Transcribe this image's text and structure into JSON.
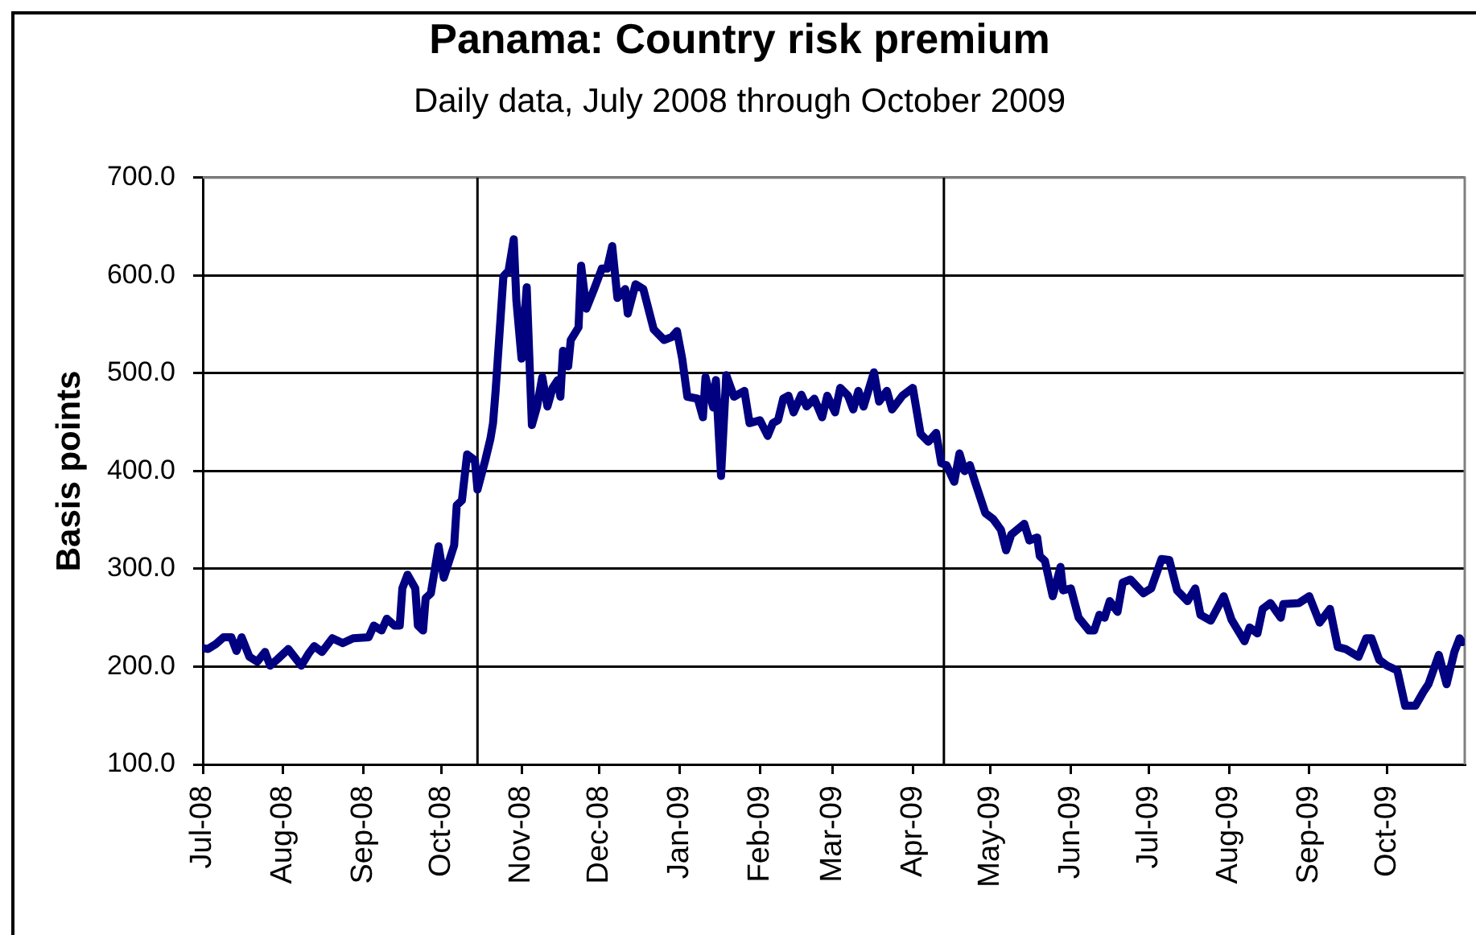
{
  "chart_data": {
    "type": "line",
    "title": "Panama: Country risk premium",
    "subtitle": "Daily data, July 2008 through October 2009",
    "ylabel": "Basis points",
    "x": [
      "2008-07-01",
      "2008-07-03",
      "2008-07-06",
      "2008-07-09",
      "2008-07-12",
      "2008-07-14",
      "2008-07-16",
      "2008-07-19",
      "2008-07-22",
      "2008-07-25",
      "2008-07-27",
      "2008-07-30",
      "2008-08-03",
      "2008-08-08",
      "2008-08-11",
      "2008-08-13",
      "2008-08-16",
      "2008-08-20",
      "2008-08-24",
      "2008-08-28",
      "2008-09-03",
      "2008-09-05",
      "2008-09-08",
      "2008-09-10",
      "2008-09-13",
      "2008-09-15",
      "2008-09-16",
      "2008-09-18",
      "2008-09-21",
      "2008-09-22",
      "2008-09-24",
      "2008-09-25",
      "2008-09-27",
      "2008-09-30",
      "2008-10-02",
      "2008-10-06",
      "2008-10-07",
      "2008-10-09",
      "2008-10-11",
      "2008-10-14",
      "2008-10-15",
      "2008-10-18",
      "2008-10-20",
      "2008-10-21",
      "2008-10-22",
      "2008-10-25",
      "2008-10-27",
      "2008-10-29",
      "2008-10-30",
      "2008-11-01",
      "2008-11-03",
      "2008-11-05",
      "2008-11-07",
      "2008-11-09",
      "2008-11-11",
      "2008-11-13",
      "2008-11-15",
      "2008-11-16",
      "2008-11-17",
      "2008-11-19",
      "2008-11-20",
      "2008-11-23",
      "2008-11-24",
      "2008-11-26",
      "2008-11-29",
      "2008-12-02",
      "2008-12-04",
      "2008-12-06",
      "2008-12-08",
      "2008-12-11",
      "2008-12-12",
      "2008-12-15",
      "2008-12-18",
      "2008-12-22",
      "2008-12-26",
      "2008-12-29",
      "2008-12-31",
      "2009-01-02",
      "2009-01-04",
      "2009-01-08",
      "2009-01-10",
      "2009-01-11",
      "2009-01-14",
      "2009-01-15",
      "2009-01-17",
      "2009-01-19",
      "2009-01-22",
      "2009-01-26",
      "2009-01-28",
      "2009-02-01",
      "2009-02-04",
      "2009-02-06",
      "2009-02-08",
      "2009-02-10",
      "2009-02-12",
      "2009-02-14",
      "2009-02-17",
      "2009-02-19",
      "2009-02-22",
      "2009-02-25",
      "2009-02-27",
      "2009-03-02",
      "2009-03-04",
      "2009-03-07",
      "2009-03-09",
      "2009-03-11",
      "2009-03-13",
      "2009-03-17",
      "2009-03-19",
      "2009-03-22",
      "2009-03-24",
      "2009-03-28",
      "2009-04-01",
      "2009-04-04",
      "2009-04-07",
      "2009-04-10",
      "2009-04-12",
      "2009-04-14",
      "2009-04-17",
      "2009-04-19",
      "2009-04-21",
      "2009-04-23",
      "2009-04-25",
      "2009-04-29",
      "2009-05-02",
      "2009-05-05",
      "2009-05-07",
      "2009-05-09",
      "2009-05-14",
      "2009-05-16",
      "2009-05-19",
      "2009-05-20",
      "2009-05-22",
      "2009-05-25",
      "2009-05-28",
      "2009-05-29",
      "2009-06-01",
      "2009-06-04",
      "2009-06-08",
      "2009-06-10",
      "2009-06-12",
      "2009-06-14",
      "2009-06-16",
      "2009-06-19",
      "2009-06-21",
      "2009-06-24",
      "2009-06-29",
      "2009-07-02",
      "2009-07-06",
      "2009-07-09",
      "2009-07-12",
      "2009-07-16",
      "2009-07-19",
      "2009-07-21",
      "2009-07-25",
      "2009-07-30",
      "2009-08-02",
      "2009-08-07",
      "2009-08-09",
      "2009-08-12",
      "2009-08-14",
      "2009-08-17",
      "2009-08-21",
      "2009-08-22",
      "2009-08-28",
      "2009-09-01",
      "2009-09-05",
      "2009-09-09",
      "2009-09-12",
      "2009-09-15",
      "2009-09-20",
      "2009-09-23",
      "2009-09-25",
      "2009-09-28",
      "2009-10-01",
      "2009-10-05",
      "2009-10-08",
      "2009-10-12",
      "2009-10-15",
      "2009-10-17",
      "2009-10-21",
      "2009-10-24",
      "2009-10-27",
      "2009-10-29",
      "2009-10-30"
    ],
    "values": [
      219,
      218,
      223,
      230,
      230,
      216,
      230,
      210,
      205,
      215,
      201,
      208,
      218,
      201,
      214,
      221,
      215,
      229,
      224,
      229,
      230,
      242,
      237,
      249,
      242,
      242,
      280,
      294,
      280,
      242,
      237,
      270,
      275,
      323,
      291,
      324,
      365,
      370,
      417,
      411,
      381,
      411,
      433,
      449,
      482,
      599,
      605,
      637,
      575,
      515,
      588,
      447,
      466,
      496,
      466,
      485,
      493,
      476,
      523,
      507,
      534,
      547,
      610,
      566,
      586,
      607,
      607,
      630,
      577,
      586,
      561,
      591,
      586,
      545,
      534,
      537,
      543,
      515,
      476,
      474,
      455,
      496,
      465,
      493,
      395,
      498,
      476,
      482,
      449,
      452,
      436,
      449,
      452,
      474,
      477,
      460,
      478,
      466,
      474,
      455,
      477,
      460,
      485,
      477,
      463,
      482,
      466,
      501,
      471,
      482,
      463,
      477,
      485,
      438,
      430,
      439,
      408,
      406,
      389,
      418,
      400,
      406,
      389,
      357,
      351,
      340,
      319,
      335,
      346,
      329,
      332,
      313,
      308,
      272,
      302,
      278,
      280,
      250,
      237,
      237,
      253,
      250,
      267,
      256,
      286,
      289,
      275,
      280,
      310,
      309,
      278,
      267,
      280,
      253,
      247,
      272,
      248,
      226,
      240,
      234,
      259,
      265,
      250,
      264,
      265,
      272,
      245,
      259,
      220,
      218,
      210,
      229,
      229,
      207,
      201,
      196,
      160,
      160,
      174,
      182,
      212,
      182,
      215,
      229,
      225
    ],
    "color": "#000080",
    "xlim": [
      "2008-07-01",
      "2009-10-31"
    ],
    "xticks": [
      {
        "value": "2008-07-01",
        "label": "Jul-08"
      },
      {
        "value": "2008-08-01",
        "label": "Aug-08"
      },
      {
        "value": "2008-09-01",
        "label": "Sep-08"
      },
      {
        "value": "2008-10-01",
        "label": "Oct-08"
      },
      {
        "value": "2008-11-01",
        "label": "Nov-08"
      },
      {
        "value": "2008-12-01",
        "label": "Dec-08"
      },
      {
        "value": "2009-01-01",
        "label": "Jan-09"
      },
      {
        "value": "2009-02-01",
        "label": "Feb-09"
      },
      {
        "value": "2009-03-01",
        "label": "Mar-09"
      },
      {
        "value": "2009-04-01",
        "label": "Apr-09"
      },
      {
        "value": "2009-05-01",
        "label": "May-09"
      },
      {
        "value": "2009-06-01",
        "label": "Jun-09"
      },
      {
        "value": "2009-07-01",
        "label": "Jul-09"
      },
      {
        "value": "2009-08-01",
        "label": "Aug-09"
      },
      {
        "value": "2009-09-01",
        "label": "Sep-09"
      },
      {
        "value": "2009-10-01",
        "label": "Oct-09"
      }
    ],
    "ylim": [
      100,
      700
    ],
    "yticks": [
      {
        "value": 100,
        "label": "100.0"
      },
      {
        "value": 200,
        "label": "200.0"
      },
      {
        "value": 300,
        "label": "300.0"
      },
      {
        "value": 400,
        "label": "400.0"
      },
      {
        "value": 500,
        "label": "500.0"
      },
      {
        "value": 600,
        "label": "600.0"
      },
      {
        "value": 700,
        "label": "700.0"
      }
    ],
    "grid": "y",
    "ref_lines": [
      {
        "axis": "x",
        "value": "2008-10-15",
        "color": "#000000"
      },
      {
        "axis": "x",
        "value": "2009-04-13",
        "color": "#000000"
      }
    ]
  }
}
